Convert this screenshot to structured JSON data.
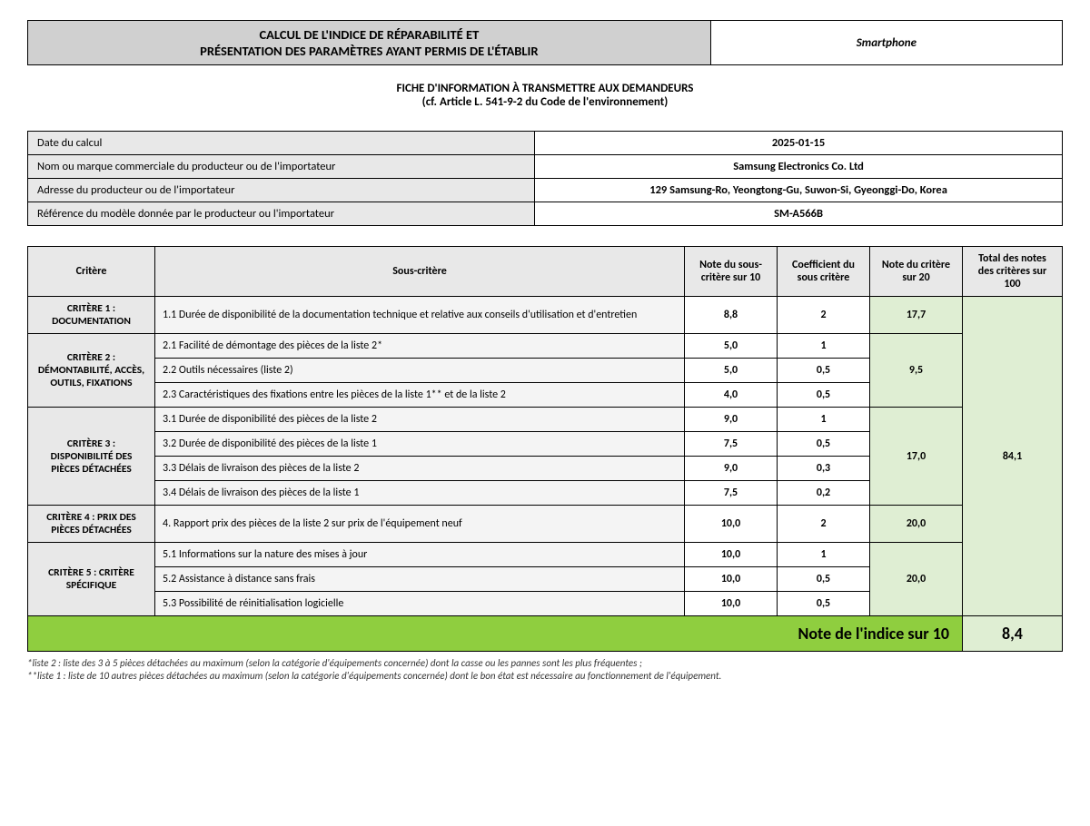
{
  "colors": {
    "header_bg": "#d0d0d0",
    "cell_bg": "#e8e8e8",
    "sub_bg": "#f4f4f4",
    "score20_bg": "#dfeed3",
    "score100_bg": "#dfeed3",
    "index_bg": "#8fce3f",
    "border": "#000000"
  },
  "header": {
    "title_line1": "CALCUL DE L'INDICE DE RÉPARABILITÉ ET",
    "title_line2": "PRÉSENTATION DES PARAMÈTRES AYANT PERMIS DE L'ÉTABLIR",
    "product": "Smartphone"
  },
  "subheading": {
    "line1": "FICHE D'INFORMATION À TRANSMETTRE AUX DEMANDEURS",
    "line2": "(cf. Article L. 541-9-2 du Code de l'environnement)"
  },
  "info": [
    {
      "label": "Date du calcul",
      "value": "2025-01-15"
    },
    {
      "label": "Nom ou marque commerciale du producteur ou de l'importateur",
      "value": "Samsung Electronics Co. Ltd"
    },
    {
      "label": "Adresse du producteur ou de l'importateur",
      "value": "129 Samsung-Ro, Yeongtong-Gu, Suwon-Si, Gyeonggi-Do, Korea"
    },
    {
      "label": "Référence du modèle donnée par le producteur ou l'importateur",
      "value": "SM-A566B"
    }
  ],
  "columns": {
    "critere": "Critère",
    "sous": "Sous-critère",
    "note_sub": "Note du sous-critère sur 10",
    "coef": "Coefficient du sous critère",
    "note_crit": "Note du critère sur 20",
    "total": "Total des notes des critères sur 100"
  },
  "criteria": [
    {
      "name": "CRITÈRE 1 : DOCUMENTATION",
      "score20": "17,7",
      "subs": [
        {
          "label": "1.1 Durée de disponibilité de la documentation technique et relative aux conseils d'utilisation et d'entretien",
          "note": "8,8",
          "coef": "2"
        }
      ]
    },
    {
      "name": "CRITÈRE 2 : DÉMONTABILITÉ, ACCÈS, OUTILS, FIXATIONS",
      "score20": "9,5",
      "subs": [
        {
          "label": "2.1 Facilité de démontage des pièces de la liste 2*",
          "note": "5,0",
          "coef": "1"
        },
        {
          "label": "2.2 Outils nécessaires (liste 2)",
          "note": "5,0",
          "coef": "0,5"
        },
        {
          "label": "2.3 Caractéristiques des fixations entre les pièces de la liste 1** et de la liste 2",
          "note": "4,0",
          "coef": "0,5"
        }
      ]
    },
    {
      "name": "CRITÈRE 3 : DISPONIBILITÉ DES PIÈCES DÉTACHÉES",
      "score20": "17,0",
      "subs": [
        {
          "label": "3.1 Durée de disponibilité des pièces de la liste 2",
          "note": "9,0",
          "coef": "1"
        },
        {
          "label": "3.2 Durée de disponibilité des pièces de la liste 1",
          "note": "7,5",
          "coef": "0,5"
        },
        {
          "label": "3.3 Délais de livraison des pièces de la liste 2",
          "note": "9,0",
          "coef": "0,3"
        },
        {
          "label": "3.4 Délais de livraison des pièces de la liste 1",
          "note": "7,5",
          "coef": "0,2"
        }
      ]
    },
    {
      "name": "CRITÈRE 4 : PRIX DES PIÈCES DÉTACHÉES",
      "score20": "20,0",
      "subs": [
        {
          "label": "4. Rapport prix des pièces de la liste 2 sur prix de l'équipement neuf",
          "note": "10,0",
          "coef": "2"
        }
      ]
    },
    {
      "name": "CRITÈRE 5 : CRITÈRE SPÉCIFIQUE",
      "score20": "20,0",
      "subs": [
        {
          "label": "5.1 Informations sur la nature des mises à jour",
          "note": "10,0",
          "coef": "1"
        },
        {
          "label": "5.2 Assistance à distance sans frais",
          "note": "10,0",
          "coef": "0,5"
        },
        {
          "label": "5.3 Possibilité de réinitialisation logicielle",
          "note": "10,0",
          "coef": "0,5"
        }
      ]
    }
  ],
  "total100": "84,1",
  "index": {
    "label": "Note de l'indice sur 10",
    "value": "8,4"
  },
  "footnotes": {
    "l1": "*liste 2 : liste des 3 à 5 pièces détachées au maximum (selon la catégorie d'équipements concernée) dont la casse ou les pannes sont les plus fréquentes ;",
    "l2": "**liste 1 : liste de 10 autres pièces détachées au maximum (selon la catégorie d'équipements concernée) dont le bon état est nécessaire au fonctionnement de l'équipement."
  }
}
